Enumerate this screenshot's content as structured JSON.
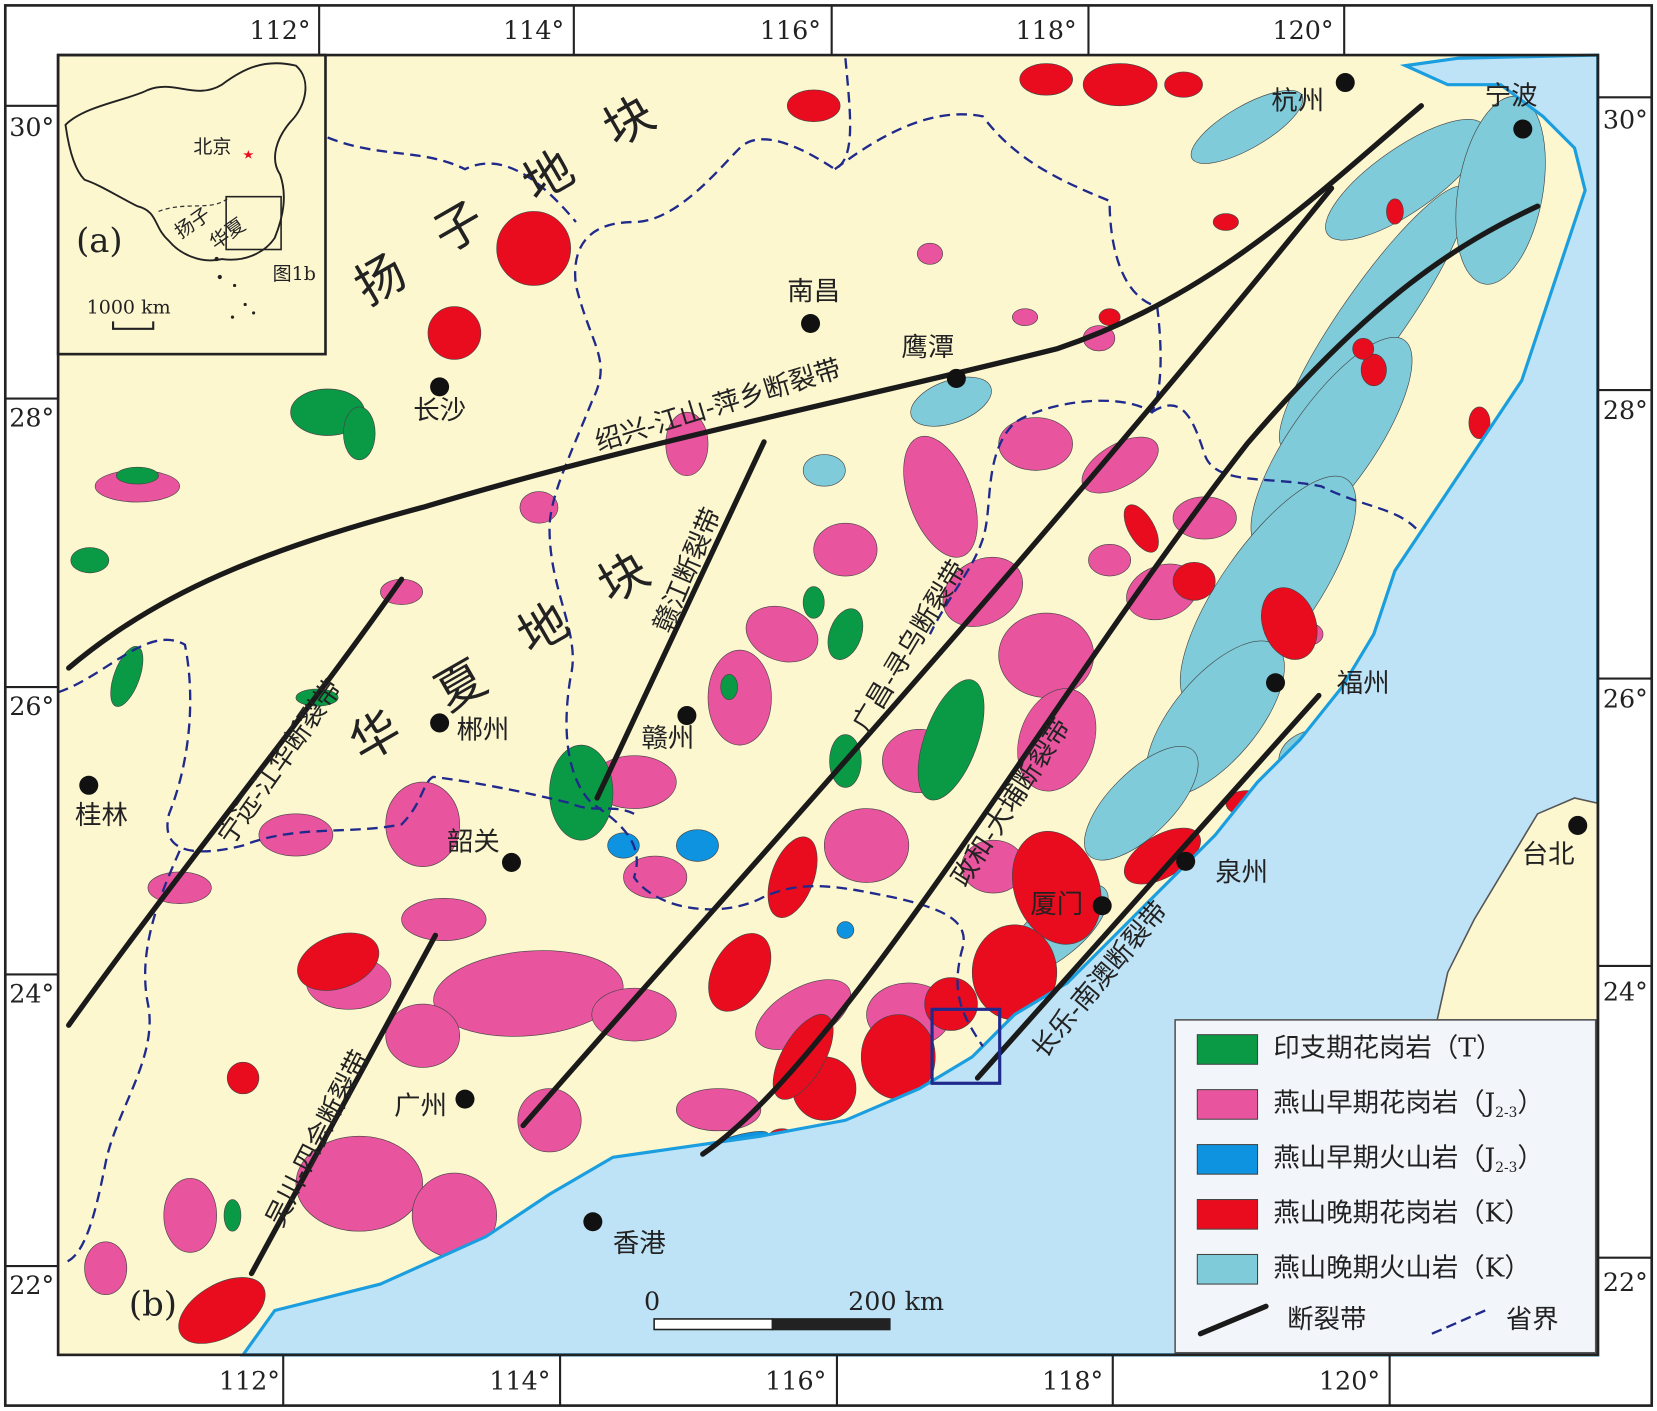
{
  "map": {
    "lon_top": [
      "112°",
      "114°",
      "116°",
      "118°",
      "120°"
    ],
    "lon_bottom": [
      "112°",
      "114°",
      "116°",
      "118°",
      "120°"
    ],
    "lat_left": [
      "30°",
      "28°",
      "26°",
      "24°",
      "22°"
    ],
    "lat_right": [
      "30°",
      "28°",
      "26°",
      "24°",
      "22°"
    ],
    "cities": [
      "杭州",
      "宁波",
      "南昌",
      "鹰潭",
      "长沙",
      "郴州",
      "赣州",
      "桂林",
      "韶关",
      "福州",
      "泉州",
      "厦门",
      "台北",
      "广州",
      "香港"
    ],
    "faults": [
      "绍兴-江山-萍乡断裂带",
      "赣江断裂带",
      "广昌-寻乌断裂带",
      "政和-大埔断裂带",
      "长乐-南澳断裂带",
      "宁远-江华断裂带",
      "吴川-四会断裂带"
    ],
    "yangtze_block": [
      "扬",
      "子",
      "地",
      "块"
    ],
    "cathaysia_block": [
      "华",
      "夏",
      "地",
      "块"
    ],
    "panel_a": "(a)",
    "panel_b": "(b)",
    "inset": {
      "beijing": "北京",
      "yangtze": "扬子",
      "cathaysia": "华夏",
      "figure_ref": "图1b",
      "scale": "1000  km"
    },
    "scale_bar": {
      "start": "0",
      "end": "200 km"
    },
    "legend": [
      {
        "text": "印支期花岗岩（T）",
        "color": "#0a9a46"
      },
      {
        "text": "燕山早期花岗岩（J",
        "sub": "2-3",
        "close": "）",
        "color": "#e8549e"
      },
      {
        "text": "燕山早期火山岩（J",
        "sub": "2-3",
        "close": "）",
        "color": "#0d93e0"
      },
      {
        "text": "燕山晚期花岗岩（K）",
        "color": "#e80c1e"
      },
      {
        "text": "燕山晚期火山岩（K）",
        "color": "#7fcbd9"
      }
    ],
    "legend_fault": "断裂带",
    "legend_boundary": "省界"
  }
}
